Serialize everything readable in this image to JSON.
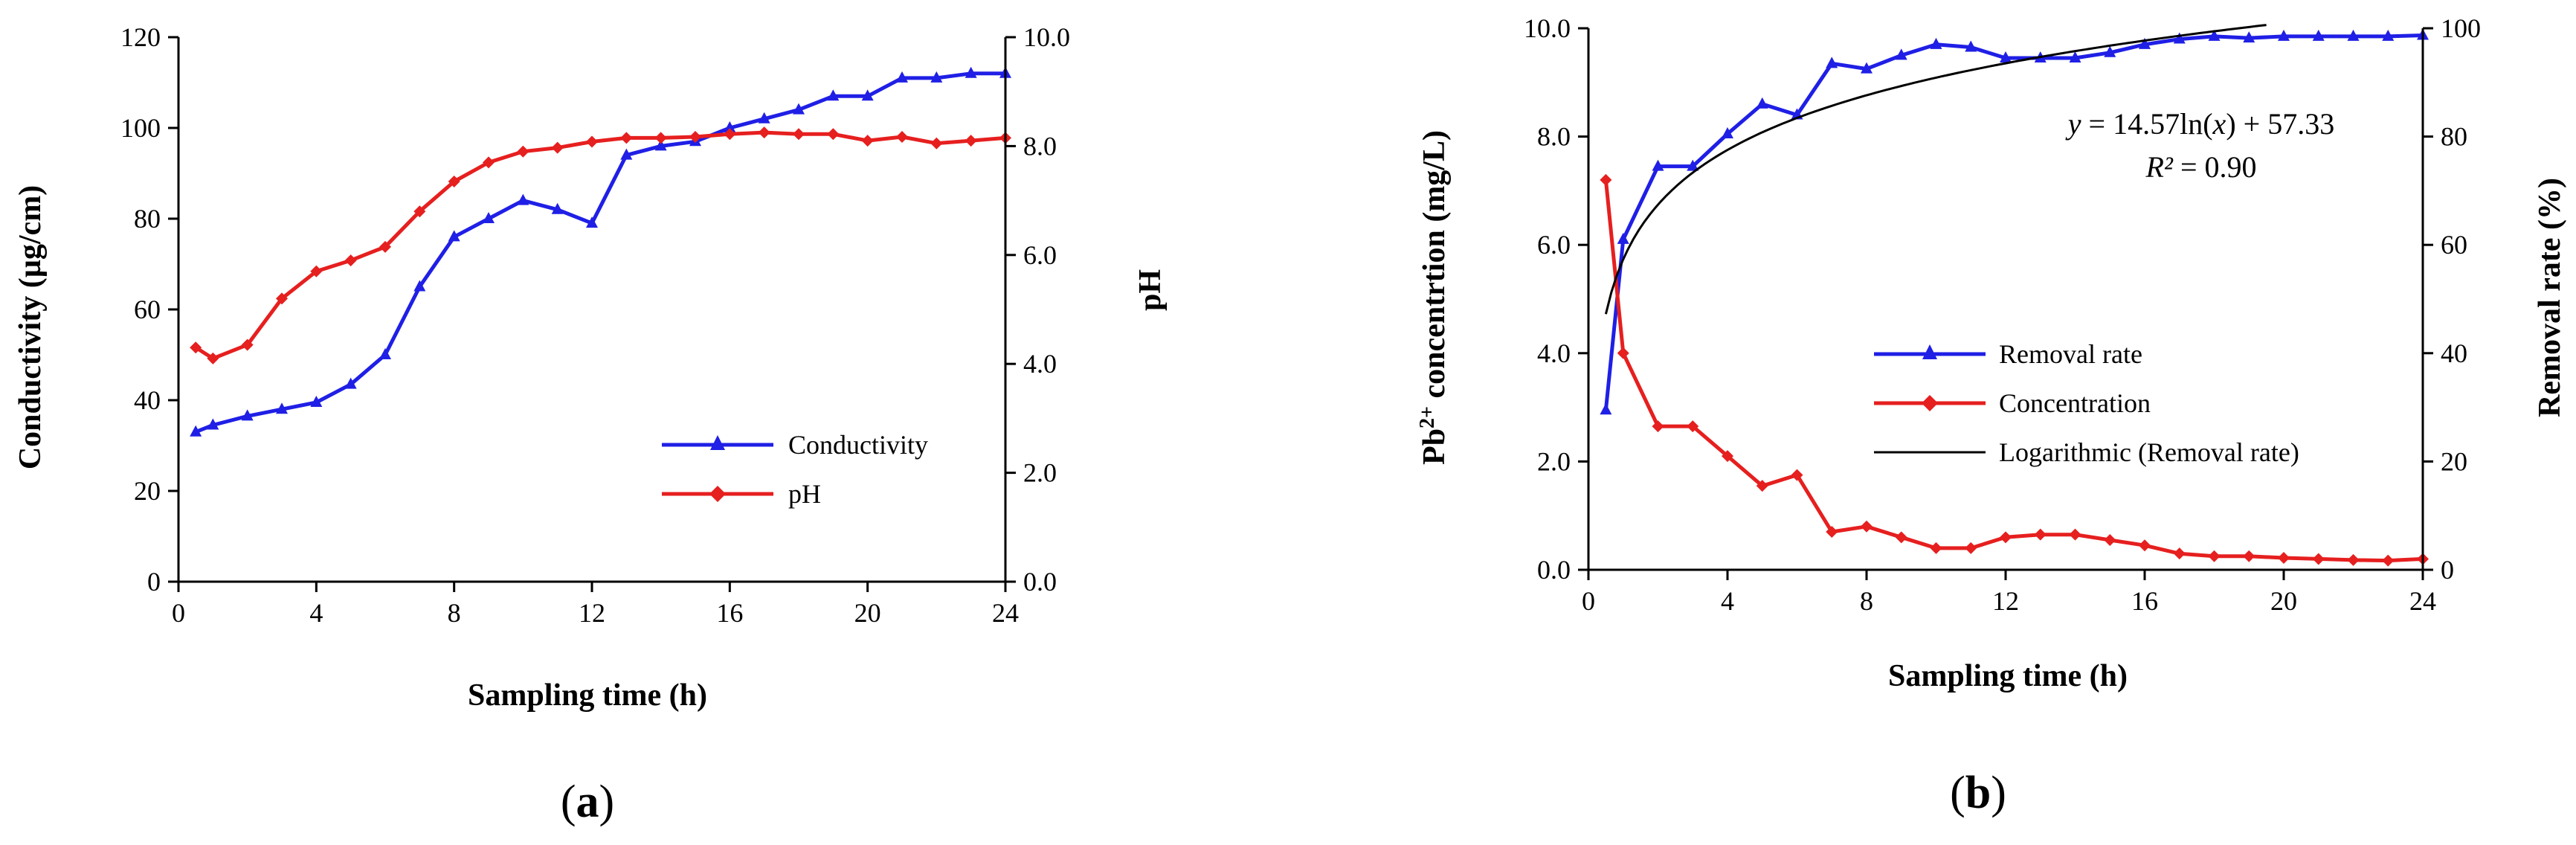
{
  "chart_data": [
    {
      "type": "line",
      "panel_label": "a",
      "title": "",
      "xlabel": "Sampling time (h)",
      "ylabel_left": "Conductivity (µg/cm)",
      "ylabel_right": "pH",
      "xlim": [
        0,
        24
      ],
      "ylim_left": [
        0,
        120
      ],
      "ylim_right": [
        0.0,
        10.0
      ],
      "xticks": [
        "0",
        "4",
        "8",
        "12",
        "16",
        "20",
        "24"
      ],
      "yticks_left": [
        "0",
        "20",
        "40",
        "60",
        "80",
        "100",
        "120"
      ],
      "yticks_right": [
        "0.0",
        "2.0",
        "4.0",
        "6.0",
        "8.0",
        "10.0"
      ],
      "legend_position": "bottom-right",
      "grid": false,
      "series": [
        {
          "name": "Conductivity",
          "axis": "left",
          "color": "#1f1fe6",
          "marker": "triangle",
          "x": [
            0.5,
            1,
            2,
            3,
            4,
            5,
            6,
            7,
            8,
            9,
            10,
            11,
            12,
            13,
            14,
            15,
            16,
            17,
            18,
            19,
            20,
            21,
            22,
            23,
            24
          ],
          "values": [
            33,
            34.5,
            36.5,
            38,
            39.5,
            43.5,
            50,
            65,
            76,
            80,
            84,
            82,
            79,
            94,
            96,
            97,
            100,
            102,
            104,
            107,
            107,
            111,
            111,
            112,
            112
          ]
        },
        {
          "name": "pH",
          "axis": "right",
          "color": "#e61f1f",
          "marker": "diamond",
          "x": [
            0.5,
            1,
            2,
            3,
            4,
            5,
            6,
            7,
            8,
            9,
            10,
            11,
            12,
            13,
            14,
            15,
            16,
            17,
            18,
            19,
            20,
            21,
            22,
            23,
            24
          ],
          "values": [
            4.3,
            4.1,
            4.35,
            5.2,
            5.7,
            5.9,
            6.15,
            6.8,
            7.35,
            7.7,
            7.9,
            7.97,
            8.08,
            8.15,
            8.15,
            8.17,
            8.22,
            8.25,
            8.22,
            8.22,
            8.1,
            8.17,
            8.05,
            8.1,
            8.15
          ]
        }
      ]
    },
    {
      "type": "line",
      "panel_label": "b",
      "title": "",
      "xlabel": "Sampling time (h)",
      "ylabel_left_main": "Pb",
      "ylabel_left_sup": "2+",
      "ylabel_left_rest": " concentrtion (mg/L)",
      "ylabel_right": "Removal rate (%)",
      "xlim": [
        0,
        24
      ],
      "ylim_left": [
        0.0,
        10.0
      ],
      "ylim_right": [
        0,
        100
      ],
      "xticks": [
        "0",
        "4",
        "8",
        "12",
        "16",
        "20",
        "24"
      ],
      "yticks_left": [
        "0.0",
        "2.0",
        "4.0",
        "6.0",
        "8.0",
        "10.0"
      ],
      "yticks_right": [
        "0",
        "20",
        "40",
        "60",
        "80",
        "100"
      ],
      "legend_position": "center-right",
      "grid": false,
      "equation_y": "y",
      "equation_body": " = 14.57ln(",
      "equation_x": "x",
      "equation_tail": ") + 57.33",
      "r2_label": "R²",
      "r2_value": " = 0.90",
      "series": [
        {
          "name": "Removal rate",
          "axis": "right",
          "color": "#1f1fe6",
          "marker": "triangle",
          "x": [
            0.5,
            1,
            2,
            3,
            4,
            5,
            6,
            7,
            8,
            9,
            10,
            11,
            12,
            13,
            14,
            15,
            16,
            17,
            18,
            19,
            20,
            21,
            22,
            23,
            24
          ],
          "values": [
            29.5,
            61,
            74.5,
            74.5,
            80.5,
            86,
            84,
            93.5,
            92.5,
            95,
            97,
            96.5,
            94.5,
            94.5,
            94.5,
            95.5,
            97,
            98,
            98.5,
            98.2,
            98.5,
            98.5,
            98.5,
            98.5,
            98.7
          ]
        },
        {
          "name": "Concentration",
          "axis": "left",
          "color": "#e61f1f",
          "marker": "diamond",
          "x": [
            0.5,
            1,
            2,
            3,
            4,
            5,
            6,
            7,
            8,
            9,
            10,
            11,
            12,
            13,
            14,
            15,
            16,
            17,
            18,
            19,
            20,
            21,
            22,
            23,
            24
          ],
          "values": [
            7.2,
            4.0,
            2.65,
            2.65,
            2.1,
            1.55,
            1.75,
            0.7,
            0.8,
            0.6,
            0.4,
            0.4,
            0.6,
            0.65,
            0.65,
            0.55,
            0.45,
            0.3,
            0.25,
            0.25,
            0.22,
            0.2,
            0.18,
            0.17,
            0.2
          ]
        },
        {
          "name": "Logarithmic (Removal rate)",
          "axis": "right",
          "color": "#000000",
          "marker": "none",
          "fit": {
            "model": "logarithmic",
            "a": 14.57,
            "b": 57.33,
            "x_range": [
              0.5,
              19.5
            ]
          }
        }
      ]
    }
  ]
}
